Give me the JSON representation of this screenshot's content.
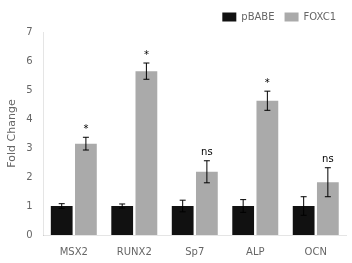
{
  "chart_data": {
    "type": "bar",
    "categories": [
      "MSX2",
      "RUNX2",
      "Sp7",
      "ALP",
      "OCN"
    ],
    "series": [
      {
        "name": "pBABE",
        "color": "#111111",
        "values": [
          1.0,
          1.0,
          1.0,
          1.0,
          1.0
        ],
        "errors": [
          0.08,
          0.07,
          0.2,
          0.22,
          0.32
        ]
      },
      {
        "name": "FOXC1",
        "color": "#aaaaaa",
        "values": [
          3.15,
          5.65,
          2.18,
          4.63,
          1.82
        ],
        "errors": [
          0.22,
          0.28,
          0.38,
          0.33,
          0.5
        ]
      }
    ],
    "annotations": [
      {
        "x": "MSX2",
        "series": "FOXC1",
        "text": "*"
      },
      {
        "x": "RUNX2",
        "series": "FOXC1",
        "text": "*"
      },
      {
        "x": "Sp7",
        "series": "FOXC1",
        "text": "ns"
      },
      {
        "x": "ALP",
        "series": "FOXC1",
        "text": "*"
      },
      {
        "x": "OCN",
        "series": "FOXC1",
        "text": "ns"
      }
    ],
    "ylabel": "Fold Change",
    "ylim": [
      0,
      7
    ],
    "yticks": [
      0,
      1,
      2,
      3,
      4,
      5,
      6,
      7
    ],
    "grid": false,
    "legend": "upper right"
  }
}
